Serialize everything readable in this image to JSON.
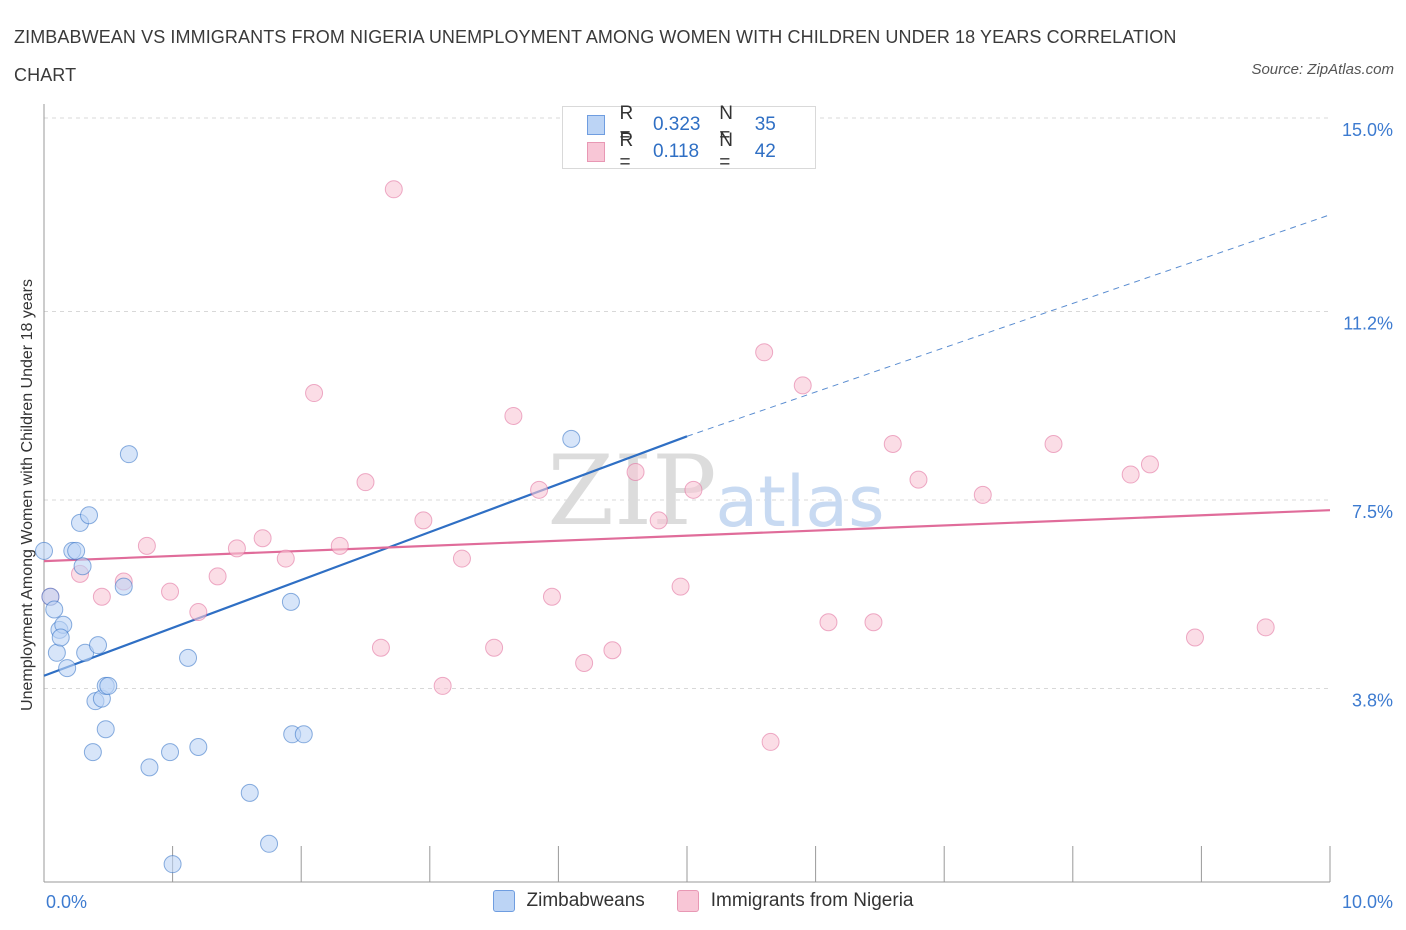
{
  "title": "ZIMBABWEAN VS IMMIGRANTS FROM NIGERIA UNEMPLOYMENT AMONG WOMEN WITH CHILDREN UNDER 18 YEARS CORRELATION CHART",
  "source": "Source: ZipAtlas.com",
  "colors": {
    "blue": "#2f6fc4",
    "blue_fill": "#bcd4f5",
    "pink": "#e06c9a",
    "pink_fill": "#f8c6d6",
    "grid": "#d8d8d8",
    "axis_text": "#3d7bd0"
  },
  "legend": {
    "rows": [
      {
        "r_label": "R =",
        "r_value": "0.323",
        "n_label": "N =",
        "n_value": "35"
      },
      {
        "r_label": "R =",
        "r_value": "0.118",
        "n_label": "N =",
        "n_value": "42"
      }
    ]
  },
  "watermark": {
    "zip": "ZIP",
    "atlas": "atlas"
  },
  "chart_data": {
    "type": "scatter",
    "ylabel": "Unemployment Among Women with Children Under 18 years",
    "xlim": [
      0,
      10
    ],
    "ylim": [
      0,
      15
    ],
    "x_tick_labels": [
      "0.0%",
      "10.0%"
    ],
    "y_ticks": [
      {
        "value": 3.8,
        "label": "3.8%"
      },
      {
        "value": 7.5,
        "label": "7.5%"
      },
      {
        "value": 11.2,
        "label": "11.2%"
      },
      {
        "value": 15.0,
        "label": "15.0%"
      }
    ],
    "series": [
      {
        "name": "Zimbabweans",
        "color": "#2f6fc4",
        "fill": "#bcd4f5",
        "trend": {
          "x0": 0.0,
          "y0": 4.05,
          "x1": 5.0,
          "y1": 8.75,
          "dash_to_x": 10.0,
          "dash_y": 13.1
        },
        "points": [
          [
            0.0,
            6.5
          ],
          [
            0.05,
            5.6
          ],
          [
            0.08,
            5.35
          ],
          [
            0.1,
            4.5
          ],
          [
            0.12,
            4.95
          ],
          [
            0.15,
            5.05
          ],
          [
            0.13,
            4.8
          ],
          [
            0.18,
            4.2
          ],
          [
            0.22,
            6.5
          ],
          [
            0.25,
            6.5
          ],
          [
            0.28,
            7.05
          ],
          [
            0.3,
            6.2
          ],
          [
            0.32,
            4.5
          ],
          [
            0.35,
            7.2
          ],
          [
            0.38,
            2.55
          ],
          [
            0.4,
            3.55
          ],
          [
            0.42,
            4.65
          ],
          [
            0.45,
            3.6
          ],
          [
            0.48,
            3.85
          ],
          [
            0.5,
            3.85
          ],
          [
            0.48,
            3.0
          ],
          [
            0.62,
            5.8
          ],
          [
            0.66,
            8.4
          ],
          [
            0.82,
            2.25
          ],
          [
            0.98,
            2.55
          ],
          [
            1.0,
            0.35
          ],
          [
            1.12,
            4.4
          ],
          [
            1.2,
            2.65
          ],
          [
            1.6,
            1.75
          ],
          [
            1.75,
            0.75
          ],
          [
            1.92,
            5.5
          ],
          [
            1.93,
            2.9
          ],
          [
            2.02,
            2.9
          ],
          [
            4.1,
            8.7
          ],
          [
            4.2,
            14.8
          ]
        ]
      },
      {
        "name": "Immigrants from Nigeria",
        "color": "#e06c9a",
        "fill": "#f8c6d6",
        "trend": {
          "x0": 0.0,
          "y0": 6.3,
          "x1": 10.0,
          "y1": 7.3
        },
        "points": [
          [
            0.05,
            5.6
          ],
          [
            0.28,
            6.05
          ],
          [
            0.45,
            5.6
          ],
          [
            0.62,
            5.9
          ],
          [
            0.8,
            6.6
          ],
          [
            0.98,
            5.7
          ],
          [
            1.2,
            5.3
          ],
          [
            1.35,
            6.0
          ],
          [
            1.5,
            6.55
          ],
          [
            1.7,
            6.75
          ],
          [
            1.88,
            6.35
          ],
          [
            2.1,
            9.6
          ],
          [
            2.3,
            6.6
          ],
          [
            2.5,
            7.85
          ],
          [
            2.62,
            4.6
          ],
          [
            2.72,
            13.6
          ],
          [
            2.95,
            7.1
          ],
          [
            3.1,
            3.85
          ],
          [
            3.25,
            6.35
          ],
          [
            3.5,
            4.6
          ],
          [
            3.65,
            9.15
          ],
          [
            3.85,
            7.7
          ],
          [
            3.95,
            5.6
          ],
          [
            4.2,
            4.3
          ],
          [
            4.42,
            4.55
          ],
          [
            4.6,
            8.05
          ],
          [
            4.78,
            7.1
          ],
          [
            4.95,
            5.8
          ],
          [
            5.05,
            7.7
          ],
          [
            5.6,
            10.4
          ],
          [
            5.65,
            2.75
          ],
          [
            5.9,
            9.75
          ],
          [
            6.1,
            5.1
          ],
          [
            6.45,
            5.1
          ],
          [
            6.6,
            8.6
          ],
          [
            6.8,
            7.9
          ],
          [
            7.3,
            7.6
          ],
          [
            7.85,
            8.6
          ],
          [
            8.45,
            8.0
          ],
          [
            8.6,
            8.2
          ],
          [
            8.95,
            4.8
          ],
          [
            9.5,
            5.0
          ]
        ]
      }
    ]
  }
}
